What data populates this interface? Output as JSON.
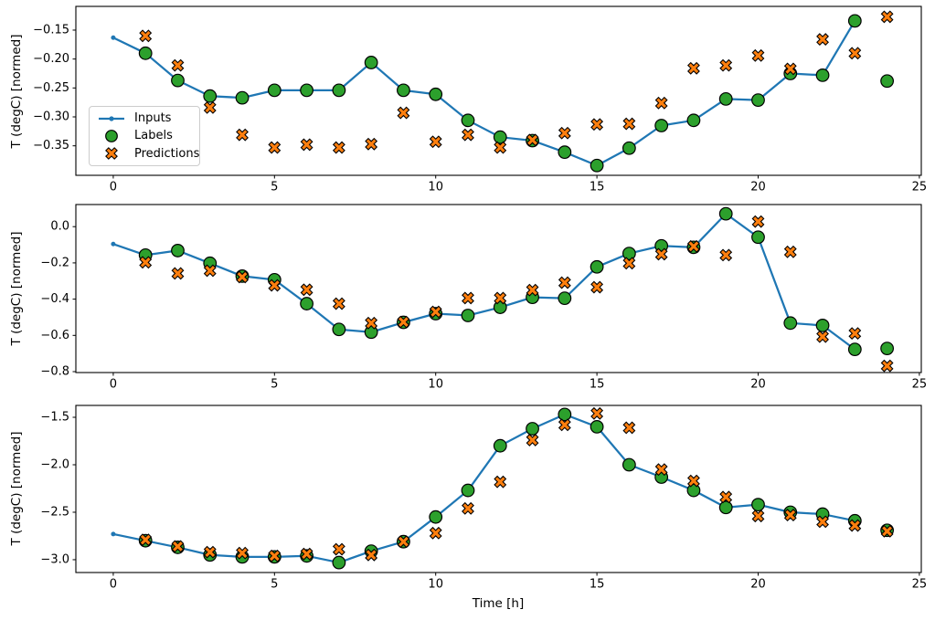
{
  "figure": {
    "background": "#ffffff",
    "colors": {
      "inputs": "#1f77b4",
      "labels": "#2ca02c",
      "predictions": "#ff7f0e",
      "marker_edge": "#000000",
      "spine": "#000000",
      "tick_text": "#000000",
      "legend_border": "#cccccc"
    },
    "legend": {
      "position": "upper left of subplot 1",
      "items": [
        {
          "label": "Inputs",
          "marker": "line-with-dot",
          "color": "#1f77b4"
        },
        {
          "label": "Labels",
          "marker": "filled-circle",
          "color": "#2ca02c",
          "edge": "#000000"
        },
        {
          "label": "Predictions",
          "marker": "thick-x",
          "color": "#ff7f0e",
          "edge": "#000000"
        }
      ]
    }
  },
  "chart_data": [
    {
      "type": "line",
      "title": "",
      "xlabel": "",
      "ylabel": "T (degC) [normed]",
      "grid": false,
      "xlim": [
        -1.16,
        25.06
      ],
      "ylim": [
        -0.401,
        -0.109
      ],
      "xticks": [
        0,
        5,
        10,
        15,
        20,
        25
      ],
      "xticklabels": [
        "0",
        "5",
        "10",
        "15",
        "20",
        "25"
      ],
      "yticks": [
        -0.15,
        -0.2,
        -0.25,
        -0.3,
        -0.35
      ],
      "yticklabels": [
        "−0.15",
        "−0.20",
        "−0.25",
        "−0.30",
        "−0.35"
      ],
      "series": [
        {
          "name": "Inputs",
          "type": "line-dot",
          "color": "#1f77b4",
          "x": [
            0,
            1,
            2,
            3,
            4,
            5,
            6,
            7,
            8,
            9,
            10,
            11,
            12,
            13,
            14,
            15,
            16,
            17,
            18,
            19,
            20,
            21,
            22,
            23
          ],
          "y": [
            -0.163,
            -0.19,
            -0.237,
            -0.264,
            -0.267,
            -0.254,
            -0.254,
            -0.254,
            -0.206,
            -0.254,
            -0.261,
            -0.306,
            -0.335,
            -0.341,
            -0.361,
            -0.384,
            -0.354,
            -0.315,
            -0.306,
            -0.269,
            -0.271,
            -0.225,
            -0.228,
            -0.134
          ]
        },
        {
          "name": "Labels",
          "type": "scatter-circle",
          "color": "#2ca02c",
          "x": [
            1,
            2,
            3,
            4,
            5,
            6,
            7,
            8,
            9,
            10,
            11,
            12,
            13,
            14,
            15,
            16,
            17,
            18,
            19,
            20,
            21,
            22,
            23,
            24
          ],
          "y": [
            -0.19,
            -0.237,
            -0.264,
            -0.267,
            -0.254,
            -0.254,
            -0.254,
            -0.206,
            -0.254,
            -0.261,
            -0.306,
            -0.335,
            -0.341,
            -0.361,
            -0.384,
            -0.354,
            -0.315,
            -0.306,
            -0.269,
            -0.271,
            -0.225,
            -0.228,
            -0.134,
            -0.238
          ]
        },
        {
          "name": "Predictions",
          "type": "scatter-x",
          "color": "#ff7f0e",
          "x": [
            1,
            2,
            3,
            4,
            5,
            6,
            7,
            8,
            9,
            10,
            11,
            12,
            13,
            14,
            15,
            16,
            17,
            18,
            19,
            20,
            21,
            22,
            23,
            24
          ],
          "y": [
            -0.16,
            -0.211,
            -0.284,
            -0.331,
            -0.353,
            -0.348,
            -0.353,
            -0.347,
            -0.293,
            -0.343,
            -0.331,
            -0.353,
            -0.34,
            -0.328,
            -0.313,
            -0.312,
            -0.276,
            -0.216,
            -0.211,
            -0.194,
            -0.217,
            -0.166,
            -0.19,
            -0.127
          ]
        }
      ]
    },
    {
      "type": "line",
      "title": "",
      "xlabel": "",
      "ylabel": "T (degC) [normed]",
      "grid": false,
      "xlim": [
        -1.16,
        25.06
      ],
      "ylim": [
        -0.805,
        0.122
      ],
      "xticks": [
        0,
        5,
        10,
        15,
        20,
        25
      ],
      "xticklabels": [
        "0",
        "5",
        "10",
        "15",
        "20",
        "25"
      ],
      "yticks": [
        0.0,
        -0.2,
        -0.4,
        -0.6,
        -0.8
      ],
      "yticklabels": [
        "0.0",
        "−0.2",
        "−0.4",
        "−0.6",
        "−0.8"
      ],
      "series": [
        {
          "name": "Inputs",
          "type": "line-dot",
          "color": "#1f77b4",
          "x": [
            0,
            1,
            2,
            3,
            4,
            5,
            6,
            7,
            8,
            9,
            10,
            11,
            12,
            13,
            14,
            15,
            16,
            17,
            18,
            19,
            20,
            21,
            22,
            23
          ],
          "y": [
            -0.096,
            -0.157,
            -0.132,
            -0.202,
            -0.273,
            -0.293,
            -0.425,
            -0.567,
            -0.582,
            -0.528,
            -0.48,
            -0.49,
            -0.445,
            -0.39,
            -0.395,
            -0.222,
            -0.148,
            -0.106,
            -0.114,
            0.071,
            -0.058,
            -0.532,
            -0.545,
            -0.677
          ]
        },
        {
          "name": "Labels",
          "type": "scatter-circle",
          "color": "#2ca02c",
          "x": [
            1,
            2,
            3,
            4,
            5,
            6,
            7,
            8,
            9,
            10,
            11,
            12,
            13,
            14,
            15,
            16,
            17,
            18,
            19,
            20,
            21,
            22,
            23,
            24
          ],
          "y": [
            -0.157,
            -0.132,
            -0.202,
            -0.273,
            -0.293,
            -0.425,
            -0.567,
            -0.582,
            -0.528,
            -0.48,
            -0.49,
            -0.445,
            -0.39,
            -0.395,
            -0.222,
            -0.148,
            -0.106,
            -0.114,
            0.071,
            -0.058,
            -0.532,
            -0.545,
            -0.677,
            -0.672
          ]
        },
        {
          "name": "Predictions",
          "type": "scatter-x",
          "color": "#ff7f0e",
          "x": [
            1,
            2,
            3,
            4,
            5,
            6,
            7,
            8,
            9,
            10,
            11,
            12,
            13,
            14,
            15,
            16,
            17,
            18,
            19,
            20,
            21,
            22,
            23,
            24
          ],
          "y": [
            -0.197,
            -0.258,
            -0.243,
            -0.278,
            -0.324,
            -0.348,
            -0.425,
            -0.532,
            -0.526,
            -0.47,
            -0.394,
            -0.394,
            -0.35,
            -0.309,
            -0.334,
            -0.202,
            -0.152,
            -0.109,
            -0.157,
            0.028,
            -0.139,
            -0.607,
            -0.589,
            -0.768
          ]
        }
      ]
    },
    {
      "type": "line",
      "title": "",
      "xlabel": "Time [h]",
      "ylabel": "T (degC) [normed]",
      "grid": false,
      "xlim": [
        -1.16,
        25.06
      ],
      "ylim": [
        -3.135,
        -1.375
      ],
      "xticks": [
        0,
        5,
        10,
        15,
        20,
        25
      ],
      "xticklabels": [
        "0",
        "5",
        "10",
        "15",
        "20",
        "25"
      ],
      "yticks": [
        -1.5,
        -2.0,
        -2.5,
        -3.0
      ],
      "yticklabels": [
        "−1.5",
        "−2.0",
        "−2.5",
        "−3.0"
      ],
      "series": [
        {
          "name": "Inputs",
          "type": "line-dot",
          "color": "#1f77b4",
          "x": [
            0,
            1,
            2,
            3,
            4,
            5,
            6,
            7,
            8,
            9,
            10,
            11,
            12,
            13,
            14,
            15,
            16,
            17,
            18,
            19,
            20,
            21,
            22,
            23
          ],
          "y": [
            -2.73,
            -2.8,
            -2.87,
            -2.95,
            -2.97,
            -2.97,
            -2.96,
            -3.03,
            -2.91,
            -2.81,
            -2.55,
            -2.27,
            -1.8,
            -1.62,
            -1.47,
            -1.6,
            -2.0,
            -2.13,
            -2.27,
            -2.45,
            -2.42,
            -2.5,
            -2.52,
            -2.59
          ]
        },
        {
          "name": "Labels",
          "type": "scatter-circle",
          "color": "#2ca02c",
          "x": [
            1,
            2,
            3,
            4,
            5,
            6,
            7,
            8,
            9,
            10,
            11,
            12,
            13,
            14,
            15,
            16,
            17,
            18,
            19,
            20,
            21,
            22,
            23,
            24
          ],
          "y": [
            -2.8,
            -2.87,
            -2.95,
            -2.97,
            -2.97,
            -2.96,
            -3.03,
            -2.91,
            -2.81,
            -2.55,
            -2.27,
            -1.8,
            -1.62,
            -1.47,
            -1.6,
            -2.0,
            -2.13,
            -2.27,
            -2.45,
            -2.42,
            -2.5,
            -2.52,
            -2.59,
            -2.69
          ]
        },
        {
          "name": "Predictions",
          "type": "scatter-x",
          "color": "#ff7f0e",
          "x": [
            1,
            2,
            3,
            4,
            5,
            6,
            7,
            8,
            9,
            10,
            11,
            12,
            13,
            14,
            15,
            16,
            17,
            18,
            19,
            20,
            21,
            22,
            23,
            24
          ],
          "y": [
            -2.79,
            -2.86,
            -2.92,
            -2.93,
            -2.96,
            -2.94,
            -2.89,
            -2.95,
            -2.81,
            -2.72,
            -2.46,
            -2.18,
            -1.74,
            -1.58,
            -1.46,
            -1.61,
            -2.05,
            -2.17,
            -2.34,
            -2.54,
            -2.53,
            -2.6,
            -2.64,
            -2.7
          ]
        }
      ]
    }
  ]
}
